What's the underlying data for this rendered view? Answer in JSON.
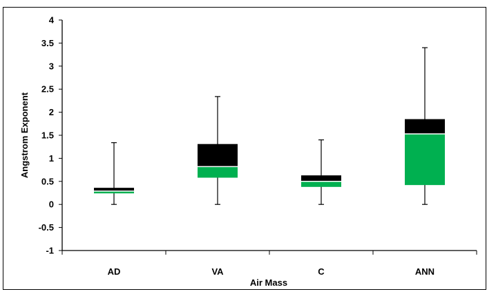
{
  "chart_data": {
    "type": "box",
    "xlabel": "Air Mass",
    "ylabel": "Angstrom Exponent",
    "ylim": [
      -1,
      4
    ],
    "yticks": [
      "-1",
      "-0.5",
      "0",
      "0.5",
      "1",
      "1.5",
      "2",
      "2.5",
      "3",
      "3.5",
      "4"
    ],
    "yvalues": [
      -1,
      -0.5,
      0,
      0.5,
      1,
      1.5,
      2,
      2.5,
      3,
      3.5,
      4
    ],
    "grid": false,
    "colors": {
      "lower_box": "#00b050",
      "upper_box": "#000000",
      "whisker": "#000000",
      "frame": "#000000"
    },
    "categories": [
      {
        "label": "AD",
        "min": 0,
        "q1": 0.24,
        "median": 0.29,
        "q3": 0.36,
        "max": 1.34
      },
      {
        "label": "VA",
        "min": 0,
        "q1": 0.58,
        "median": 0.82,
        "q3": 1.31,
        "max": 2.34
      },
      {
        "label": "C",
        "min": 0,
        "q1": 0.38,
        "median": 0.5,
        "q3": 0.63,
        "max": 1.4
      },
      {
        "label": "ANN",
        "min": 0,
        "q1": 0.42,
        "median": 1.53,
        "q3": 1.85,
        "max": 3.4
      }
    ]
  }
}
